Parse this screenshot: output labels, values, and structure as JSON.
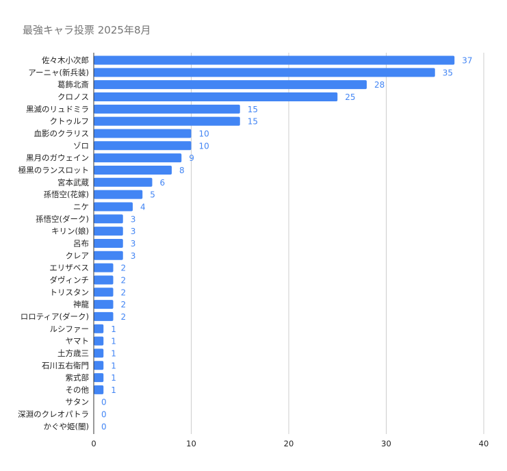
{
  "chart_data": {
    "type": "bar",
    "orientation": "horizontal",
    "title": "最強キャラ投票 2025年8月",
    "xlabel": "",
    "ylabel": "",
    "xlim": [
      0,
      40
    ],
    "xticks": [
      "0",
      "10",
      "20",
      "30",
      "40"
    ],
    "grid": true,
    "legend": "none",
    "bar_color": "#4285f4",
    "label_color": "#4285f4",
    "categories": [
      "佐々木小次郎",
      "アーニャ(新兵装)",
      "葛飾北斎",
      "クロノス",
      "黒滅のリュドミラ",
      "クトゥルフ",
      "血影のクラリス",
      "ゾロ",
      "黒月のガウェイン",
      "極黒のランスロット",
      "宮本武蔵",
      "孫悟空(花嫁)",
      "ニケ",
      "孫悟空(ダーク)",
      "キリン(娘)",
      "呂布",
      "クレア",
      "エリザベス",
      "ダヴィンチ",
      "トリスタン",
      "神龍",
      "ロロティア(ダーク)",
      "ルシファー",
      "ヤマト",
      "土方歳三",
      "石川五右衛門",
      "紫式部",
      "その他",
      "サタン",
      "深淵のクレオパトラ",
      "かぐや姫(闇)"
    ],
    "values": [
      37,
      35,
      28,
      25,
      15,
      15,
      10,
      10,
      9,
      8,
      6,
      5,
      4,
      3,
      3,
      3,
      3,
      2,
      2,
      2,
      2,
      2,
      1,
      1,
      1,
      1,
      1,
      1,
      0,
      0,
      0
    ]
  }
}
